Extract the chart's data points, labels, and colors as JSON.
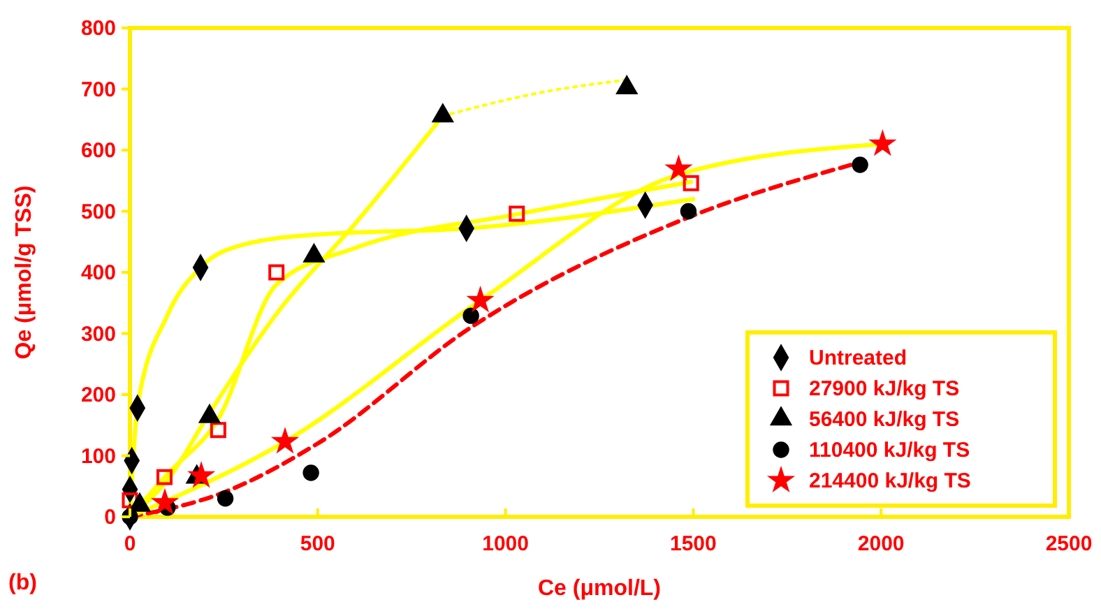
{
  "chart_data": {
    "type": "scatter",
    "xlabel": "Ce (μmol/L)",
    "ylabel": "Qe (μmol/g TSS)",
    "annotations": [
      "(b)"
    ],
    "xlim": [
      0,
      2500
    ],
    "xticks": [
      0,
      500,
      1000,
      1500,
      2000,
      2500
    ],
    "ylim": [
      0,
      800
    ],
    "yticks": [
      0,
      100,
      200,
      300,
      400,
      500,
      600,
      700,
      800
    ],
    "legend": "bottom right",
    "grid": false,
    "series": [
      {
        "name": "Untreated",
        "color": "#000000",
        "marker": "diamond",
        "x": [
          0,
          0,
          5,
          20,
          188,
          896,
          1372
        ],
        "values": [
          0,
          45,
          92,
          178,
          408,
          472,
          510
        ]
      },
      {
        "name": "27900 kJ/kg TS",
        "color": "#ff0000",
        "marker": "square",
        "x": [
          0,
          92,
          235,
          390,
          1030,
          1494
        ],
        "values": [
          27,
          65,
          142,
          400,
          496,
          546
        ]
      },
      {
        "name": "56400 kJ/kg TS",
        "color": "#000000",
        "marker": "triangle",
        "x": [
          26,
          178,
          212,
          490,
          833,
          1323
        ],
        "values": [
          19,
          65,
          164,
          427,
          656,
          702
        ]
      },
      {
        "name": "110400 kJ/kg TS",
        "color": "#000000",
        "marker": "circle",
        "x": [
          0,
          100,
          254,
          482,
          908,
          1487,
          1944
        ],
        "values": [
          0,
          15,
          30,
          72,
          329,
          500,
          576
        ]
      },
      {
        "name": "214400 kJ/kg TS",
        "color": "#ff0000",
        "marker": "star",
        "x": [
          93,
          190,
          413,
          933,
          1461,
          2004
        ],
        "values": [
          23,
          67,
          123,
          354,
          569,
          610
        ]
      },
      {
        "type": "line",
        "color": "#ffff00",
        "line_style": "solid",
        "x": [
          0,
          20,
          100,
          188,
          300,
          500,
          900,
          1500
        ],
        "values": [
          0,
          180,
          330,
          408,
          445,
          462,
          472,
          520
        ]
      },
      {
        "type": "line",
        "color": "#ffff00",
        "line_style": "solid",
        "x": [
          0,
          100,
          235,
          390,
          600,
          1030,
          1494
        ],
        "values": [
          0,
          70,
          160,
          380,
          440,
          495,
          548
        ]
      },
      {
        "type": "line",
        "color": "#ffff00",
        "line_style": "solid",
        "x": [
          0,
          100,
          212,
          400,
          600,
          833
        ],
        "values": [
          0,
          60,
          170,
          340,
          480,
          656
        ]
      },
      {
        "type": "line",
        "color": "#ffff00",
        "line_style": "dotted",
        "x": [
          833,
          1100,
          1323
        ],
        "values": [
          656,
          695,
          715
        ]
      },
      {
        "type": "line",
        "color": "#ff0000",
        "line_style": "dashed",
        "x": [
          0,
          250,
          500,
          908,
          1487,
          1944
        ],
        "values": [
          0,
          40,
          120,
          310,
          490,
          580
        ]
      },
      {
        "type": "line",
        "color": "#ffff00",
        "line_style": "solid",
        "x": [
          0,
          413,
          933,
          1461,
          2004
        ],
        "values": [
          0,
          123,
          354,
          560,
          610
        ]
      }
    ]
  }
}
